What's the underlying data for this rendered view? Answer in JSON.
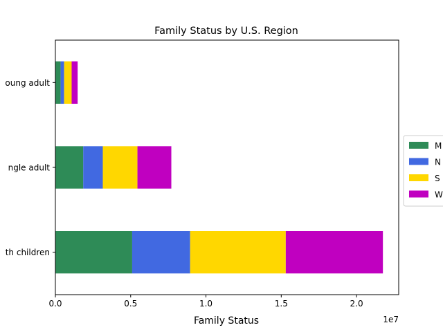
{
  "chart_data": {
    "type": "bar",
    "orientation": "horizontal",
    "stacked": true,
    "title": "Family Status by U.S. Region",
    "xlabel": "Family Status",
    "ylabel": "",
    "x_offset_label": "1e7",
    "xlim": [
      0,
      22800000
    ],
    "x_ticks": [
      0,
      5000000,
      10000000,
      15000000,
      20000000
    ],
    "x_tick_labels": [
      "0.0",
      "0.5",
      "1.0",
      "1.5",
      "2.0"
    ],
    "categories": [
      "oung adult",
      "ngle adult",
      "th children"
    ],
    "legend_position": "right",
    "grid": false,
    "series": [
      {
        "name": "M",
        "color": "#2e8b57",
        "values": [
          350000,
          1850000,
          5100000
        ]
      },
      {
        "name": "N",
        "color": "#4169e1",
        "values": [
          230000,
          1300000,
          3850000
        ]
      },
      {
        "name": "S",
        "color": "#ffd700",
        "values": [
          500000,
          2300000,
          6350000
        ]
      },
      {
        "name": "W",
        "color": "#c000c0",
        "values": [
          400000,
          2250000,
          6450000
        ]
      }
    ]
  }
}
